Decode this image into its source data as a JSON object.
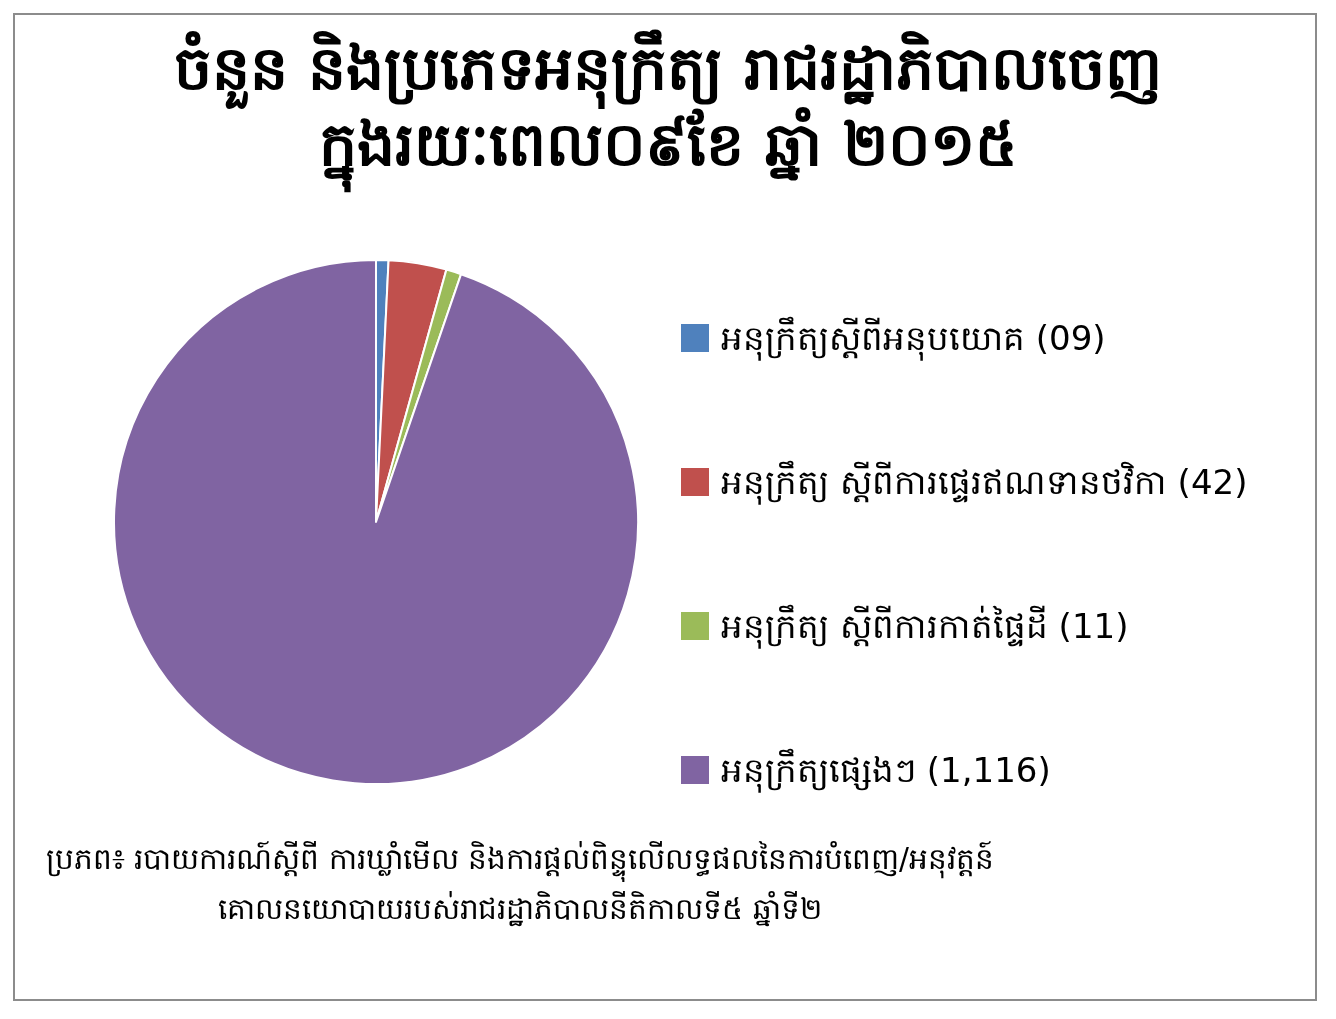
{
  "chart_data": {
    "type": "pie",
    "title": "ចំនួន និងប្រភេទអនុក្រឹត្យ រាជរដ្ឋាភិបាលចេញ\nក្នុងរយៈពេល០៩ខែ ឆ្នាំ ២០១៥",
    "categories": [
      "អនុក្រឹត្យស្តីពីអនុបយោគ (09)",
      "អនុក្រឹត្យ ស្តីពីការផ្ទេរឥណទានថវិកា (42)",
      "អនុក្រឹត្យ ស្តីពីការកាត់ផ្ទៃដី (11)",
      "អនុក្រឹត្យផ្សេងៗ (1,116)"
    ],
    "values": [
      9,
      42,
      11,
      1116
    ],
    "colors": [
      "#4f81bd",
      "#c0504d",
      "#9bbb59",
      "#8064a2"
    ],
    "legend": "right",
    "annotations": [
      "ប្រភព៖ របាយការណ៍ស្តីពី ការឃ្លាំមើល និងការផ្តល់ពិន្ទុលើលទ្ធផលនៃការបំពេញ/អនុវត្តន៍\nគោលនយោបាយរបស់រាជរដ្ឋាភិបាលនីតិកាលទី៥ ឆ្នាំទី២"
    ]
  }
}
